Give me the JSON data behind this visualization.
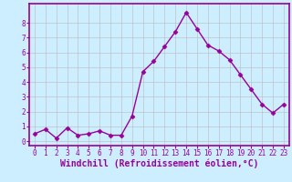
{
  "x": [
    0,
    1,
    2,
    3,
    4,
    5,
    6,
    7,
    8,
    9,
    10,
    11,
    12,
    13,
    14,
    15,
    16,
    17,
    18,
    19,
    20,
    21,
    22,
    23
  ],
  "y": [
    0.5,
    0.8,
    0.2,
    0.9,
    0.4,
    0.5,
    0.7,
    0.4,
    0.4,
    1.7,
    4.7,
    5.4,
    6.4,
    7.4,
    8.7,
    7.6,
    6.5,
    6.1,
    5.5,
    4.5,
    3.5,
    2.5,
    1.9,
    2.5
  ],
  "line_color": "#990099",
  "marker": "D",
  "markersize": 2.5,
  "linewidth": 1.0,
  "bg_color": "#cceeff",
  "grid_color": "#bbbbbb",
  "xlabel": "Windchill (Refroidissement éolien,°C)",
  "xlabel_color": "#990099",
  "xlabel_bg": "#cceeff",
  "ylabel_ticks": [
    0,
    1,
    2,
    3,
    4,
    5,
    6,
    7,
    8
  ],
  "xlim": [
    -0.5,
    23.5
  ],
  "ylim": [
    -0.3,
    9.3
  ],
  "xticks": [
    0,
    1,
    2,
    3,
    4,
    5,
    6,
    7,
    8,
    9,
    10,
    11,
    12,
    13,
    14,
    15,
    16,
    17,
    18,
    19,
    20,
    21,
    22,
    23
  ],
  "tick_fontsize": 5.5,
  "xlabel_fontsize": 7.0,
  "axis_color": "#990099",
  "tick_color": "#990099"
}
